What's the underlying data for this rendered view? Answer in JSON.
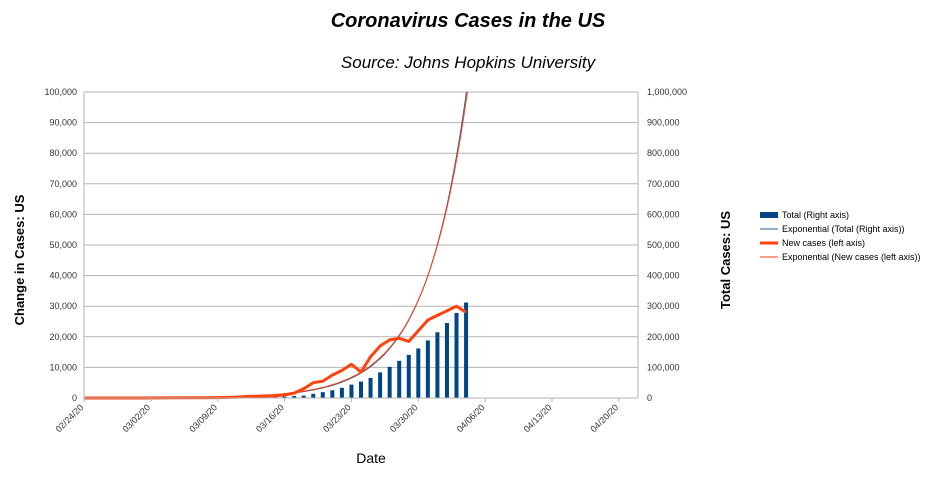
{
  "chart_data": {
    "type": "bar",
    "title": "Coronavirus Cases in the US",
    "subtitle": "Source: Johns Hopkins University",
    "xlabel": "Date",
    "ylabel_left": "Change in Cases: US",
    "ylabel_right": "Total Cases: US",
    "ylim_left": [
      0,
      100000
    ],
    "ylim_right": [
      0,
      1000000
    ],
    "yticks_left": [
      "0",
      "10,000",
      "20,000",
      "30,000",
      "40,000",
      "50,000",
      "60,000",
      "70,000",
      "80,000",
      "90,000",
      "100,000"
    ],
    "yticks_right": [
      "0",
      "100,000",
      "200,000",
      "300,000",
      "400,000",
      "500,000",
      "600,000",
      "700,000",
      "800,000",
      "900,000",
      "1,000,000"
    ],
    "xticks": [
      "02/24/20",
      "03/02/20",
      "03/09/20",
      "03/16/20",
      "03/23/20",
      "03/30/20",
      "04/06/20",
      "04/13/20",
      "04/20/20"
    ],
    "xlim": [
      "02/24/20",
      "04/22/20"
    ],
    "grid": true,
    "legend_position": "right",
    "series": [
      {
        "name": "Total (Right axis)",
        "kind": "bar",
        "axis": "right",
        "color": "#004586",
        "x": [
          "03/10/20",
          "03/11/20",
          "03/12/20",
          "03/13/20",
          "03/14/20",
          "03/15/20",
          "03/16/20",
          "03/17/20",
          "03/18/20",
          "03/19/20",
          "03/20/20",
          "03/21/20",
          "03/22/20",
          "03/23/20",
          "03/24/20",
          "03/25/20",
          "03/26/20",
          "03/27/20",
          "03/28/20",
          "03/29/20",
          "03/30/20",
          "03/31/20",
          "04/01/20",
          "04/02/20",
          "04/03/20",
          "04/04/20"
        ],
        "values": [
          900,
          1300,
          1700,
          2200,
          2900,
          3500,
          4600,
          6400,
          7800,
          13700,
          19100,
          25500,
          33300,
          43800,
          53700,
          65800,
          83800,
          101700,
          121500,
          140900,
          161800,
          188200,
          215000,
          245000,
          278000,
          312000
        ]
      },
      {
        "name": "Exponential (Total (Right axis))",
        "kind": "trend",
        "axis": "right",
        "color": "#2a5fa0",
        "a": 113,
        "k": 0.227,
        "start": "02/24/20"
      },
      {
        "name": "New cases (left axis)",
        "kind": "line",
        "axis": "left",
        "color": "#ff420e",
        "x": [
          "02/24/20",
          "02/26/20",
          "02/28/20",
          "03/01/20",
          "03/03/20",
          "03/05/20",
          "03/07/20",
          "03/09/20",
          "03/10/20",
          "03/11/20",
          "03/12/20",
          "03/13/20",
          "03/14/20",
          "03/15/20",
          "03/16/20",
          "03/17/20",
          "03/18/20",
          "03/19/20",
          "03/20/20",
          "03/21/20",
          "03/22/20",
          "03/23/20",
          "03/24/20",
          "03/25/20",
          "03/26/20",
          "03/27/20",
          "03/28/20",
          "03/29/20",
          "03/30/20",
          "03/31/20",
          "04/01/20",
          "04/02/20",
          "04/03/20",
          "04/04/20"
        ],
        "values": [
          0,
          0,
          0,
          5,
          20,
          50,
          80,
          120,
          200,
          300,
          500,
          600,
          700,
          700,
          1000,
          1600,
          3000,
          5000,
          5500,
          7500,
          9000,
          11000,
          8500,
          13500,
          17000,
          19000,
          19500,
          18500,
          22000,
          25500,
          27000,
          28500,
          30000,
          28000
        ]
      },
      {
        "name": "Exponential (New cases (left axis))",
        "kind": "trend",
        "axis": "left",
        "color": "#ff420e",
        "a": 13.5,
        "k": 0.222,
        "start": "02/24/20"
      }
    ]
  }
}
